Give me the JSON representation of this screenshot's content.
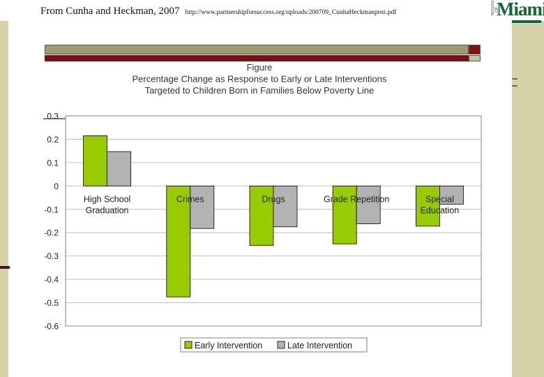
{
  "slide": {
    "citation_main": "From Cunha and Heckman, 2007",
    "citation_url": "http://www.partnershipforsuccess.org/uploads/200709_CunhaHeckmanprez.pdf",
    "logo_small": "UNIVERSITY OF",
    "logo_big": "Miami"
  },
  "colors": {
    "early": "#99cc00",
    "late": "#b3b3b3",
    "gridline": "#c0c0c0",
    "plot_border": "#808080"
  },
  "chart_data": {
    "type": "bar",
    "title_lines": [
      "Figure",
      "Percentage Change as Response to Early or Late Interventions",
      "Targeted to Children Born in Families Below Poverty Line"
    ],
    "categories": [
      [
        "High School",
        "Graduation"
      ],
      [
        "Crimes"
      ],
      [
        "Drugs"
      ],
      [
        "Grade Repetition"
      ],
      [
        "Special",
        "Education"
      ]
    ],
    "series": [
      {
        "name": "Early Intervention",
        "values": [
          0.215,
          -0.475,
          -0.255,
          -0.248,
          -0.172
        ]
      },
      {
        "name": "Late Intervention",
        "values": [
          0.147,
          -0.182,
          -0.175,
          -0.162,
          -0.078
        ]
      }
    ],
    "ylim": [
      -0.6,
      0.3
    ],
    "yticks": [
      "0.3",
      "0.2",
      "0.1",
      "0",
      "-0.1",
      "-0.2",
      "-0.3",
      "-0.4",
      "-0.5",
      "-0.6"
    ],
    "grid": true,
    "legend": "bottom",
    "xlabel": "",
    "ylabel": ""
  }
}
